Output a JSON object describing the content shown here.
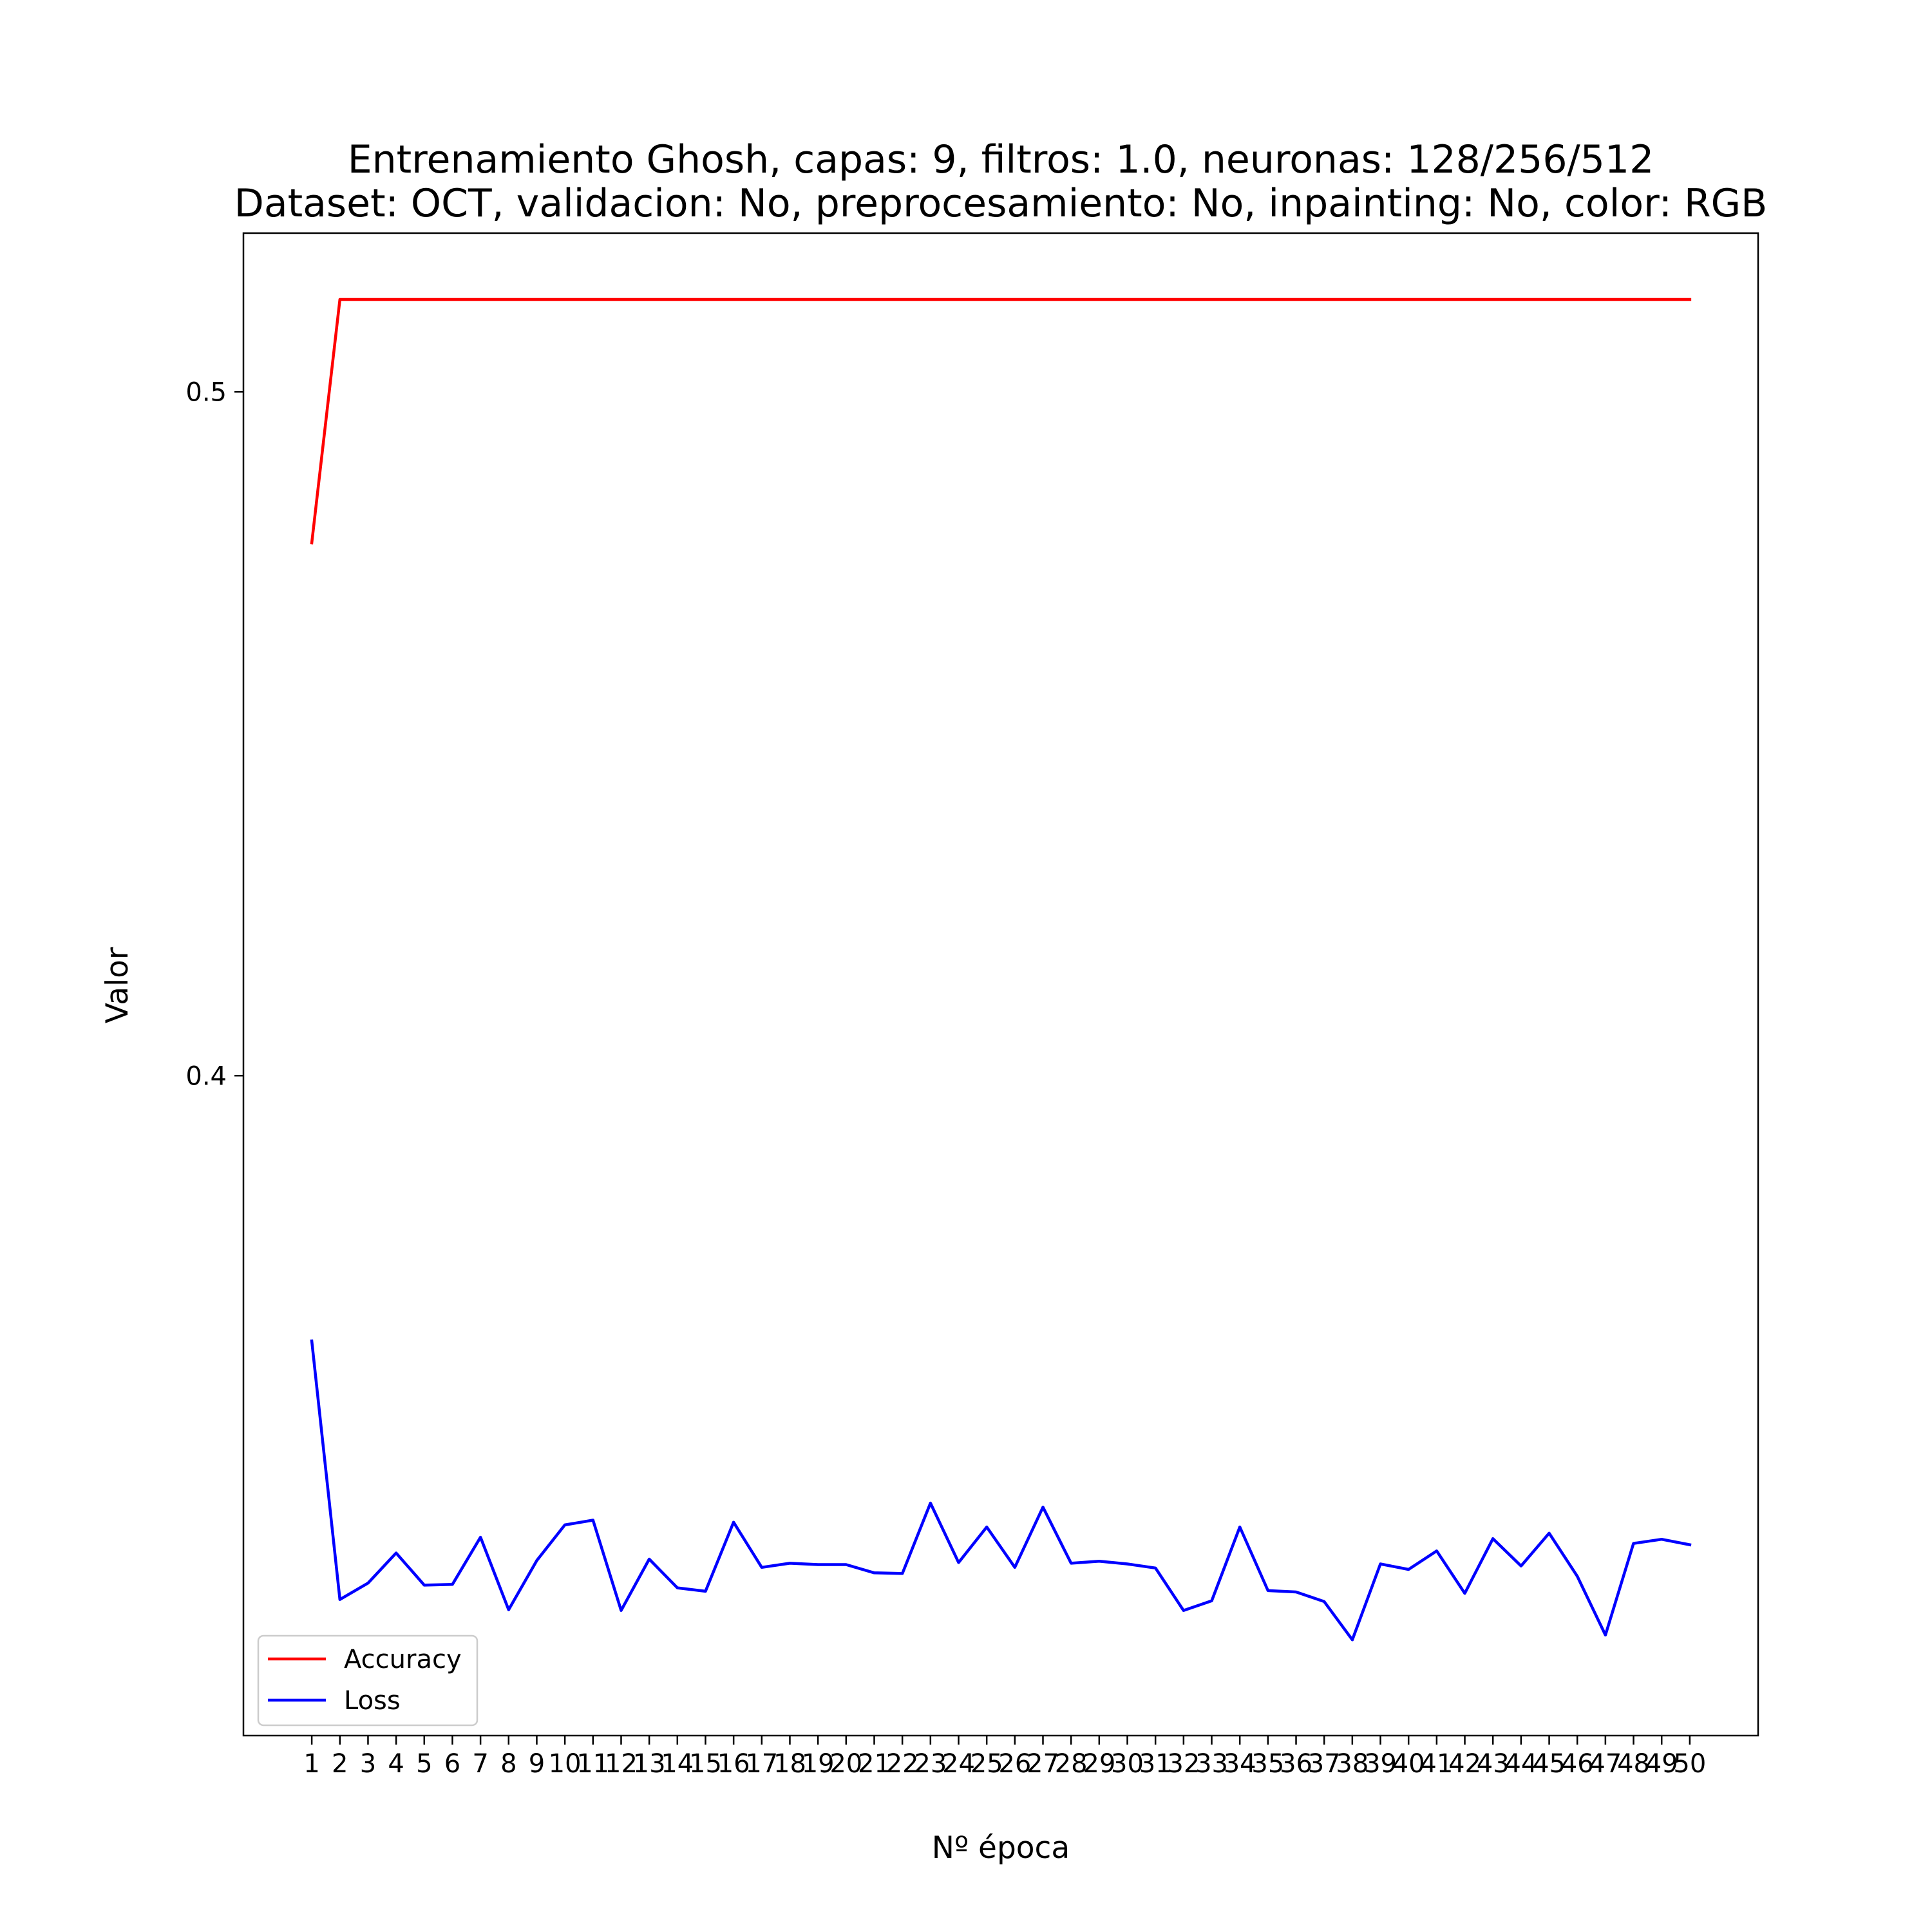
{
  "chart_data": {
    "type": "line",
    "title": "Entrenamiento Ghosh, capas: 9, filtros: 1.0, neuronas: 128/256/512",
    "subtitle": "Dataset: OCT, validacion: No, preprocesamiento: No, inpainting: No, color: RGB",
    "xlabel": "Nº época",
    "ylabel": "Valor",
    "x": [
      1,
      2,
      3,
      4,
      5,
      6,
      7,
      8,
      9,
      10,
      11,
      12,
      13,
      14,
      15,
      16,
      17,
      18,
      19,
      20,
      21,
      22,
      23,
      24,
      25,
      26,
      27,
      28,
      29,
      30,
      31,
      32,
      33,
      34,
      35,
      36,
      37,
      38,
      39,
      40,
      41,
      42,
      43,
      44,
      45,
      46,
      47,
      48,
      49,
      50
    ],
    "xtick_labels": [
      "1",
      "2",
      "3",
      "4",
      "5",
      "6",
      "7",
      "8",
      "9",
      "10",
      "11",
      "12",
      "13",
      "14",
      "15",
      "16",
      "17",
      "18",
      "19",
      "20",
      "21",
      "22",
      "23",
      "24",
      "25",
      "26",
      "27",
      "28",
      "29",
      "30",
      "31",
      "32",
      "33",
      "34",
      "35",
      "36",
      "37",
      "38",
      "39",
      "40",
      "41",
      "42",
      "43",
      "44",
      "45",
      "46",
      "47",
      "48",
      "49",
      "50"
    ],
    "yticks": [
      {
        "value": 0.4,
        "label": "0.4"
      },
      {
        "value": 0.5,
        "label": "0.5"
      }
    ],
    "ylim": [
      0.3035,
      0.5232
    ],
    "xlim": [
      -1.43,
      52.43
    ],
    "grid": false,
    "legend": "lower-left",
    "series": [
      {
        "name": "Accuracy",
        "color": "#ff0000",
        "values": [
          0.4779,
          0.5135,
          0.5135,
          0.5135,
          0.5135,
          0.5135,
          0.5135,
          0.5135,
          0.5135,
          0.5135,
          0.5135,
          0.5135,
          0.5135,
          0.5135,
          0.5135,
          0.5135,
          0.5135,
          0.5135,
          0.5135,
          0.5135,
          0.5135,
          0.5135,
          0.5135,
          0.5135,
          0.5135,
          0.5135,
          0.5135,
          0.5135,
          0.5135,
          0.5135,
          0.5135,
          0.5135,
          0.5135,
          0.5135,
          0.5135,
          0.5135,
          0.5135,
          0.5135,
          0.5135,
          0.5135,
          0.5135,
          0.5135,
          0.5135,
          0.5135,
          0.5135,
          0.5135,
          0.5135,
          0.5135,
          0.5135,
          0.5135
        ]
      },
      {
        "name": "Loss",
        "color": "#0000ff",
        "values": [
          0.3612,
          0.3234,
          0.3258,
          0.3302,
          0.3255,
          0.3256,
          0.3325,
          0.3219,
          0.3291,
          0.3343,
          0.335,
          0.3218,
          0.3293,
          0.3251,
          0.3246,
          0.3347,
          0.3281,
          0.3287,
          0.3285,
          0.3285,
          0.3273,
          0.3272,
          0.3375,
          0.3288,
          0.334,
          0.3281,
          0.3369,
          0.3287,
          0.329,
          0.3286,
          0.328,
          0.3218,
          0.3232,
          0.334,
          0.3247,
          0.3245,
          0.3231,
          0.3175,
          0.3286,
          0.3278,
          0.3305,
          0.3243,
          0.3323,
          0.3283,
          0.3331,
          0.3268,
          0.3182,
          0.3316,
          0.3322,
          0.3314
        ]
      }
    ]
  }
}
